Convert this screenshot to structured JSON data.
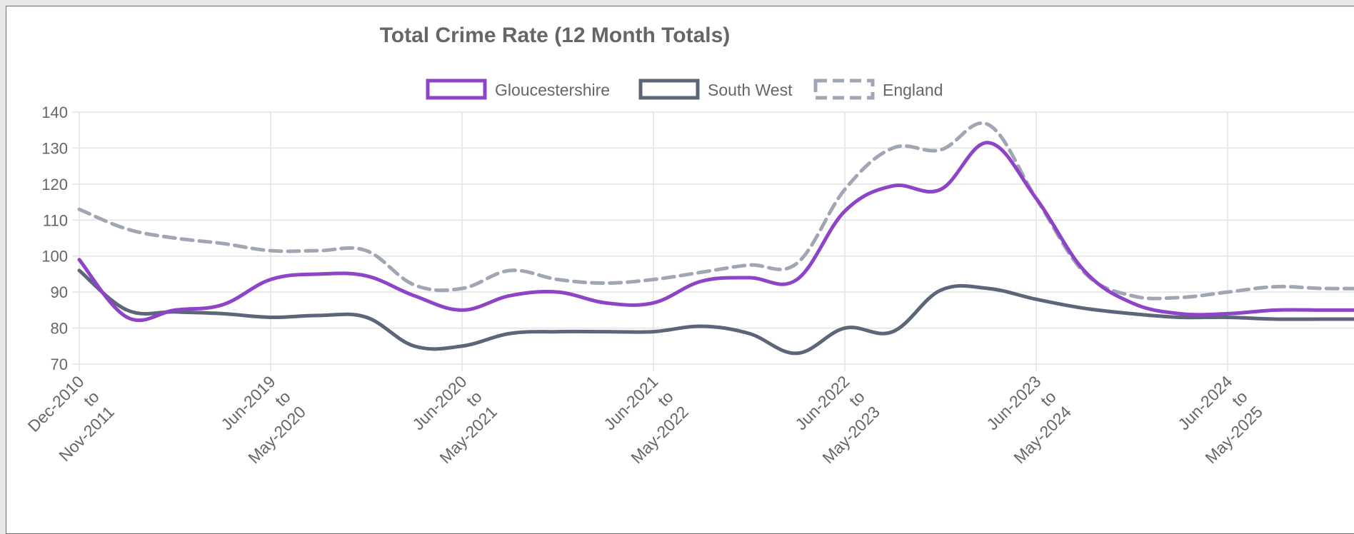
{
  "chart_data": {
    "type": "line",
    "title": "Total Crime Rate (12 Month Totals)",
    "xlabel": "",
    "ylabel": "",
    "ylim": [
      70,
      140
    ],
    "yticks": [
      70,
      80,
      90,
      100,
      110,
      120,
      130,
      140
    ],
    "grid": true,
    "legend_position": "top",
    "x_tick_labels": [
      {
        "line1": "Dec-2010",
        "line2": "to",
        "line3": "Nov-2011"
      },
      {
        "line1": "Jun-2019",
        "line2": "to",
        "line3": "May-2020"
      },
      {
        "line1": "Jun-2020",
        "line2": "to",
        "line3": "May-2021"
      },
      {
        "line1": "Jun-2021",
        "line2": "to",
        "line3": "May-2022"
      },
      {
        "line1": "Jun-2022",
        "line2": "to",
        "line3": "May-2023"
      },
      {
        "line1": "Jun-2023",
        "line2": "to",
        "line3": "May-2024"
      },
      {
        "line1": "Jun-2024",
        "line2": "to",
        "line3": "May-2025"
      }
    ],
    "series": [
      {
        "name": "Gloucestershire",
        "color": "#8e44c6",
        "dashed": false,
        "values": [
          99,
          83,
          85,
          86.5,
          93.5,
          95,
          94.5,
          89,
          85,
          89,
          90,
          87,
          87,
          93,
          94,
          93.5,
          112.5,
          119.5,
          118.5,
          131.5,
          116,
          96,
          87,
          84,
          84,
          85,
          85,
          85
        ]
      },
      {
        "name": "South West",
        "color": "#5c6678",
        "dashed": false,
        "values": [
          96,
          85,
          84.5,
          84,
          83,
          83.5,
          83,
          75,
          75,
          78.5,
          79,
          79,
          79,
          80.5,
          78.5,
          73,
          80,
          79,
          90.5,
          91,
          88,
          85.5,
          84,
          83,
          83,
          82.5,
          82.5,
          82.5
        ]
      },
      {
        "name": "England",
        "color": "#a0a6b4",
        "dashed": true,
        "values": [
          113,
          107.5,
          105,
          103.5,
          101.5,
          101.5,
          101.5,
          92,
          91,
          96,
          93.5,
          92.5,
          93.5,
          95.5,
          97.5,
          98,
          118.5,
          130,
          129.5,
          136.5,
          116,
          95.5,
          89,
          88.5,
          90,
          91.5,
          91,
          91
        ]
      }
    ]
  }
}
